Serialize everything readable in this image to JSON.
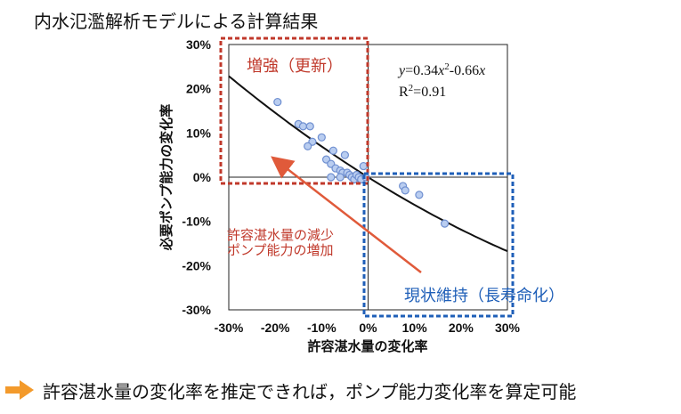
{
  "title": "内水氾濫解析モデルによる計算結果",
  "bottom_note": "許容湛水量の変化率を推定できれば，ポンプ能力変化率を算定可能",
  "colors": {
    "red": "#c0392b",
    "blue": "#1f5fb8",
    "arrow": "#e05a3a",
    "point_fill": "#b9cdf0",
    "point_stroke": "#6f8fd0",
    "note_arrow": "#f39a2b"
  },
  "chart_data": {
    "type": "scatter",
    "xlabel": "許容湛水量の変化率",
    "ylabel": "必要ポンプ能力の変化率",
    "xlim": [
      -0.3,
      0.3
    ],
    "ylim": [
      -0.3,
      0.3
    ],
    "x_ticks": [
      "-30%",
      "-20%",
      "-10%",
      "0%",
      "10%",
      "20%",
      "30%"
    ],
    "y_ticks": [
      "30%",
      "20%",
      "10%",
      "0%",
      "-10%",
      "-20%",
      "-30%"
    ],
    "grid": false,
    "fit": {
      "a": 0.34,
      "b": -0.66,
      "label_y": "y",
      "label_eq": "=0.34",
      "label_x1": "x",
      "label_sup": "2",
      "label_mid": "-0.66",
      "label_x2": "x",
      "r2_label": "R",
      "r2_sup": "2",
      "r2_value": "=0.91"
    },
    "points": [
      [
        -0.195,
        0.17
      ],
      [
        -0.15,
        0.12
      ],
      [
        -0.14,
        0.115
      ],
      [
        -0.125,
        0.115
      ],
      [
        -0.12,
        0.08
      ],
      [
        -0.13,
        0.07
      ],
      [
        -0.1,
        0.09
      ],
      [
        -0.09,
        0.04
      ],
      [
        -0.08,
        0.03
      ],
      [
        -0.075,
        0.06
      ],
      [
        -0.07,
        0.02
      ],
      [
        -0.06,
        0.015
      ],
      [
        -0.055,
        0.01
      ],
      [
        -0.05,
        0.05
      ],
      [
        -0.045,
        0.01
      ],
      [
        -0.04,
        0.005
      ],
      [
        -0.035,
        0.0
      ],
      [
        -0.03,
        -0.005
      ],
      [
        -0.025,
        0.005
      ],
      [
        -0.02,
        0.0
      ],
      [
        -0.015,
        -0.005
      ],
      [
        -0.01,
        0.025
      ],
      [
        -0.005,
        0.0
      ],
      [
        -0.06,
        0.0
      ],
      [
        -0.08,
        0.0
      ],
      [
        0.075,
        -0.02
      ],
      [
        0.08,
        -0.03
      ],
      [
        0.11,
        -0.04
      ],
      [
        0.165,
        -0.105
      ]
    ],
    "regions": [
      {
        "label": "増強（更新）"
      },
      {
        "label": "現状維持（長寿命化）"
      }
    ],
    "annotation": {
      "line1": "許容湛水量の減少",
      "line2": "ポンプ能力の増加"
    }
  }
}
